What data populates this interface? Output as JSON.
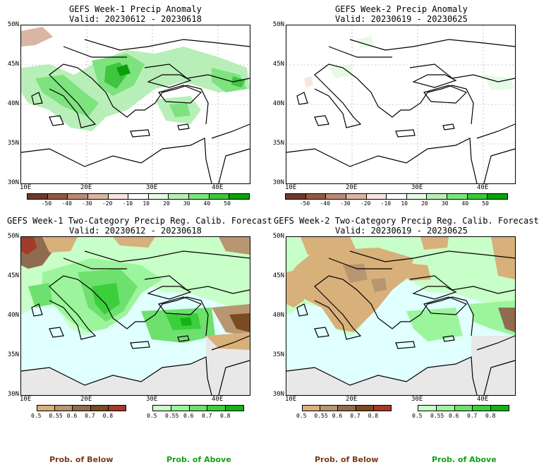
{
  "panels": [
    {
      "title": "GEFS Week-1 Precip Anomaly",
      "valid": "Valid: 20230612 - 20230618"
    },
    {
      "title": "GEFS Week-2 Precip Anomaly",
      "valid": "Valid: 20230619 - 20230625"
    },
    {
      "title": "GEFS Week-1 Two-Category Precip Reg. Calib. Forecast",
      "valid": "Valid: 20230612 - 20230618"
    },
    {
      "title": "GEFS Week-2 Two-Category Precip Reg. Calib. Forecast",
      "valid": "Valid: 20230619 - 20230625"
    }
  ],
  "lat_labels": [
    "50N",
    "45N",
    "40N",
    "35N",
    "30N"
  ],
  "lon_labels": [
    "10E",
    "20E",
    "30E",
    "40E"
  ],
  "anomaly_colorbar": {
    "colors": [
      "#6a3b2a",
      "#8f5a44",
      "#b88977",
      "#dbb5a3",
      "#f5e6de",
      "#ffffff",
      "#e6fae6",
      "#b8efb8",
      "#7ee27e",
      "#3fc63f",
      "#0aa00a"
    ],
    "labels": [
      "-50",
      "-40",
      "-30",
      "-20",
      "-10",
      "10",
      "20",
      "30",
      "40",
      "50"
    ]
  },
  "prob_below_colorbar": {
    "colors": [
      "#d8b07a",
      "#b89670",
      "#8f6b4f",
      "#7a4a22",
      "#a33a2a"
    ],
    "labels": [
      "0.5",
      "0.55",
      "0.6",
      "0.7",
      "0.8"
    ]
  },
  "prob_above_colorbar": {
    "colors": [
      "#c8ffc8",
      "#9cf59c",
      "#6ee06e",
      "#3ccf3c",
      "#14b214"
    ],
    "labels": [
      "0.5",
      "0.55",
      "0.6",
      "0.7",
      "0.8"
    ]
  },
  "legend": {
    "below": "Prob. of Below",
    "above": "Prob. of Above"
  },
  "colors": {
    "below_text": "#7a3a1a",
    "above_text": "#15a015",
    "sea": "#e0ffff",
    "land_gray": "#e8e8e8"
  }
}
